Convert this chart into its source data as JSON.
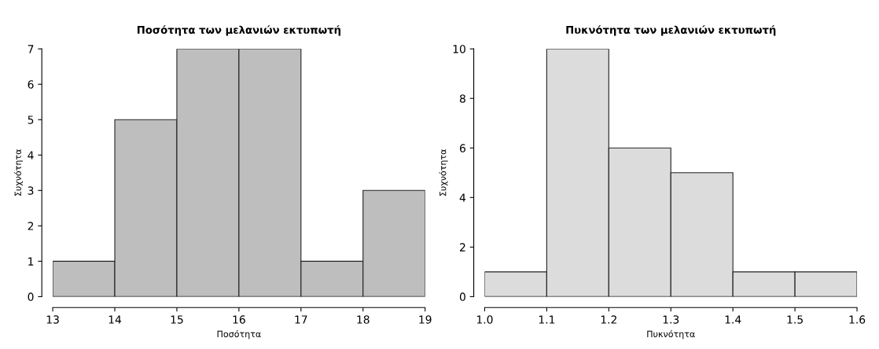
{
  "chart_data": [
    {
      "type": "histogram",
      "title": "Ποσότητα των μελανιών εκτυπωτή",
      "xlabel": "Ποσότητα",
      "ylabel": "Συχνότητα",
      "bins": [
        13,
        14,
        15,
        16,
        17,
        18,
        19
      ],
      "values": [
        1,
        5,
        7,
        7,
        1,
        3
      ],
      "color": "#bebebe",
      "xlim": [
        13,
        19
      ],
      "ylim": [
        0,
        7
      ],
      "xticks": [
        13,
        14,
        15,
        16,
        17,
        18,
        19
      ],
      "yticks": [
        0,
        1,
        2,
        3,
        4,
        5,
        6,
        7
      ],
      "grid": false
    },
    {
      "type": "histogram",
      "title": "Πυκνότητα των μελανιών εκτυπωτή",
      "xlabel": "Πυκνότητα",
      "ylabel": "Συχνότητα",
      "bins": [
        1.0,
        1.1,
        1.2,
        1.3,
        1.4,
        1.5,
        1.6
      ],
      "values": [
        1,
        10,
        6,
        5,
        1,
        1
      ],
      "color": "#dcdcdc",
      "xlim": [
        1.0,
        1.6
      ],
      "ylim": [
        0,
        10
      ],
      "xticks": [
        {
          "value": 1.0,
          "label": "1.0"
        },
        1.1,
        1.2,
        1.3,
        1.4,
        1.5,
        1.6
      ],
      "yticks": [
        0,
        2,
        4,
        6,
        8,
        10
      ],
      "grid": false
    }
  ]
}
